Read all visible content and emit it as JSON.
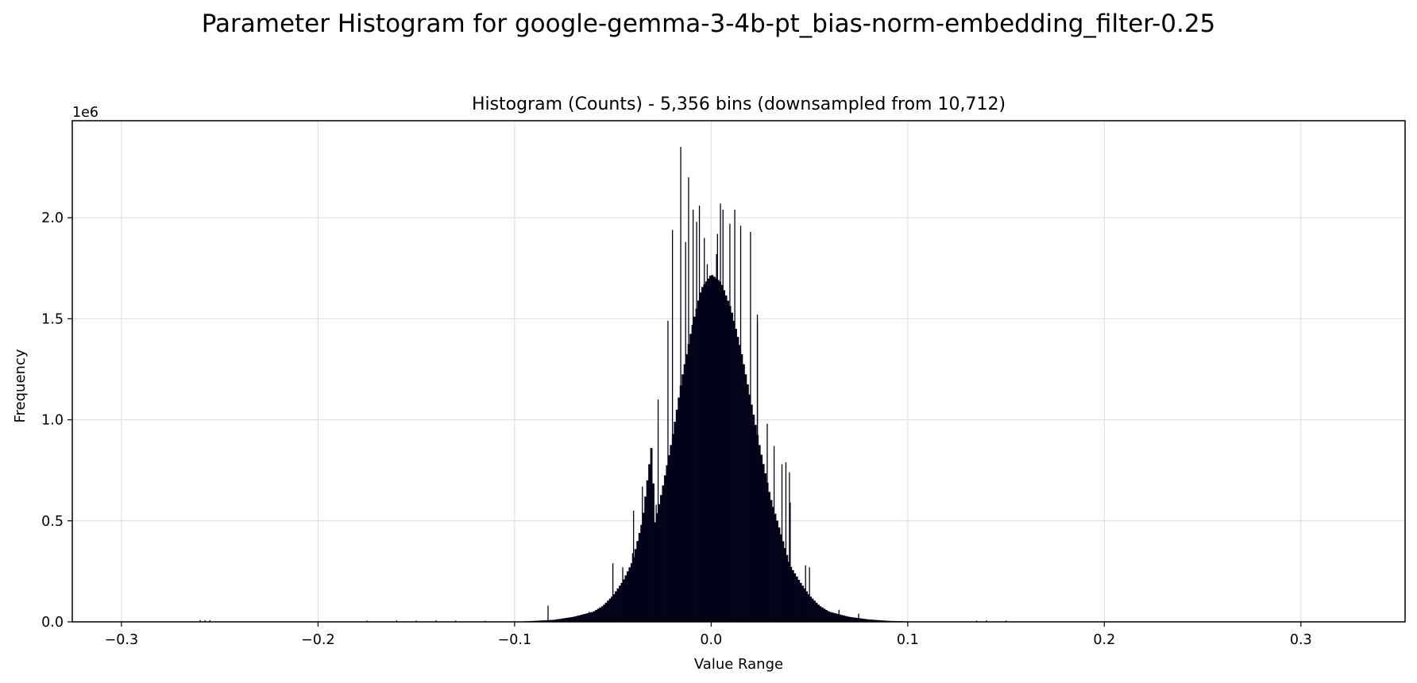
{
  "chart_data": {
    "type": "bar",
    "suptitle": "Parameter Histogram for google-gemma-3-4b-pt_bias-norm-embedding_filter-0.25",
    "title": "Histogram (Counts) - 5,356 bins (downsampled from 10,712)",
    "xlabel": "Value Range",
    "ylabel": "Frequency",
    "y_offset_label": "1e6",
    "xlim": [
      -0.325,
      0.353
    ],
    "ylim": [
      0,
      2.48
    ],
    "x_ticks": [
      -0.3,
      -0.2,
      -0.1,
      0.0,
      0.1,
      0.2,
      0.3
    ],
    "x_tick_labels": [
      "−0.3",
      "−0.2",
      "−0.1",
      "0.0",
      "0.1",
      "0.2",
      "0.3"
    ],
    "y_ticks": [
      0.0,
      0.5,
      1.0,
      1.5,
      2.0
    ],
    "y_tick_labels": [
      "0.0",
      "0.5",
      "1.0",
      "1.5",
      "2.0"
    ],
    "grid": true,
    "bar_color": "#03031a",
    "envelope": [
      [
        -0.3,
        0.0
      ],
      [
        -0.1,
        0.0
      ],
      [
        -0.09,
        0.005
      ],
      [
        -0.08,
        0.01
      ],
      [
        -0.07,
        0.025
      ],
      [
        -0.06,
        0.05
      ],
      [
        -0.055,
        0.08
      ],
      [
        -0.05,
        0.13
      ],
      [
        -0.045,
        0.2
      ],
      [
        -0.04,
        0.3
      ],
      [
        -0.035,
        0.5
      ],
      [
        -0.03,
        0.9
      ],
      [
        -0.029,
        0.47
      ],
      [
        -0.025,
        0.65
      ],
      [
        -0.02,
        0.9
      ],
      [
        -0.015,
        1.2
      ],
      [
        -0.01,
        1.45
      ],
      [
        -0.005,
        1.65
      ],
      [
        0.0,
        1.72
      ],
      [
        0.005,
        1.68
      ],
      [
        0.01,
        1.55
      ],
      [
        0.015,
        1.35
      ],
      [
        0.02,
        1.1
      ],
      [
        0.025,
        0.85
      ],
      [
        0.03,
        0.62
      ],
      [
        0.035,
        0.45
      ],
      [
        0.04,
        0.28
      ],
      [
        0.045,
        0.2
      ],
      [
        0.05,
        0.13
      ],
      [
        0.055,
        0.08
      ],
      [
        0.06,
        0.05
      ],
      [
        0.07,
        0.025
      ],
      [
        0.08,
        0.012
      ],
      [
        0.09,
        0.005
      ],
      [
        0.1,
        0.002
      ],
      [
        0.11,
        0.0
      ],
      [
        0.3,
        0.0
      ]
    ],
    "spikes": [
      [
        -0.2575,
        0.008
      ],
      [
        -0.26,
        0.009
      ],
      [
        -0.255,
        0.008
      ],
      [
        -0.175,
        0.006
      ],
      [
        -0.16,
        0.007
      ],
      [
        -0.15,
        0.006
      ],
      [
        -0.14,
        0.007
      ],
      [
        -0.13,
        0.006
      ],
      [
        -0.115,
        0.005
      ],
      [
        -0.083,
        0.08
      ],
      [
        -0.062,
        0.05
      ],
      [
        -0.05,
        0.29
      ],
      [
        -0.045,
        0.27
      ],
      [
        -0.04,
        0.34
      ],
      [
        -0.0395,
        0.55
      ],
      [
        -0.038,
        0.35
      ],
      [
        -0.035,
        0.67
      ],
      [
        -0.032,
        0.44
      ],
      [
        -0.028,
        0.58
      ],
      [
        -0.027,
        1.1
      ],
      [
        -0.022,
        1.49
      ],
      [
        -0.0197,
        1.94
      ],
      [
        -0.0155,
        2.35
      ],
      [
        -0.013,
        1.88
      ],
      [
        -0.0115,
        2.2
      ],
      [
        -0.0092,
        2.04
      ],
      [
        -0.0074,
        1.98
      ],
      [
        -0.006,
        2.06
      ],
      [
        -0.0035,
        1.9
      ],
      [
        -0.002,
        1.77
      ],
      [
        0.0013,
        1.62
      ],
      [
        0.0027,
        1.82
      ],
      [
        0.0032,
        1.92
      ],
      [
        0.0047,
        2.07
      ],
      [
        0.006,
        2.04
      ],
      [
        0.0095,
        1.97
      ],
      [
        0.012,
        2.04
      ],
      [
        0.015,
        1.96
      ],
      [
        0.02,
        1.93
      ],
      [
        0.0235,
        1.49
      ],
      [
        0.0235,
        1.52
      ],
      [
        0.0285,
        0.98
      ],
      [
        0.032,
        0.87
      ],
      [
        0.036,
        0.78
      ],
      [
        0.038,
        0.79
      ],
      [
        0.0398,
        0.74
      ],
      [
        0.0402,
        0.59
      ],
      [
        0.048,
        0.28
      ],
      [
        0.05,
        0.27
      ],
      [
        0.065,
        0.06
      ],
      [
        0.075,
        0.04
      ],
      [
        0.135,
        0.006
      ],
      [
        0.14,
        0.007
      ],
      [
        0.15,
        0.006
      ]
    ]
  }
}
